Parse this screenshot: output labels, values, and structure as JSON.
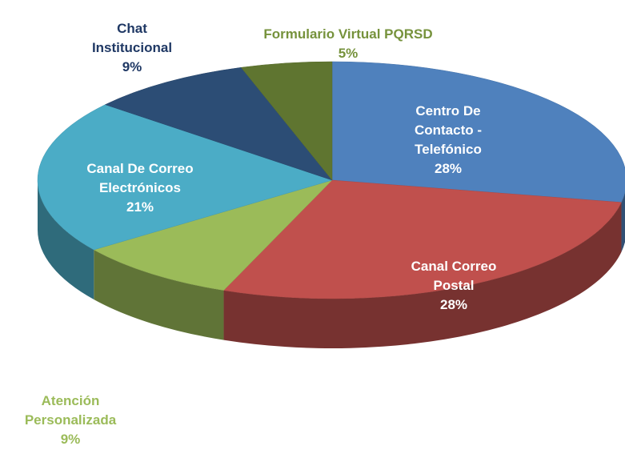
{
  "chart_data": {
    "type": "pie",
    "categories": [
      "Centro De Contacto - Telefónico",
      "Canal Correo Postal",
      "Atención Personalizada",
      "Canal De Correo Electrónicos",
      "Chat Institucional",
      "Formulario Virtual PQRSD"
    ],
    "values": [
      28,
      28,
      9,
      21,
      9,
      5
    ],
    "value_labels": [
      "28%",
      "28%",
      "9%",
      "21%",
      "9%",
      "5%"
    ],
    "colors": [
      "#4f81bd",
      "#c0504d",
      "#9bbb59",
      "#4bacc6",
      "#2c4d75",
      "#5f7530"
    ]
  }
}
